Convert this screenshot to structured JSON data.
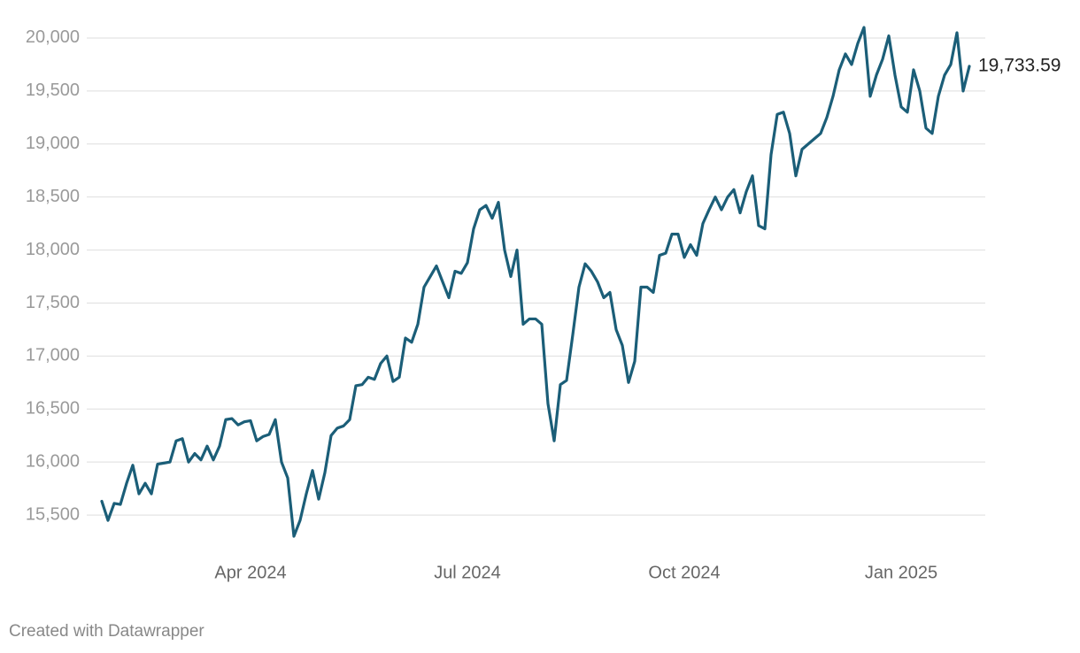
{
  "chart_data": {
    "type": "line",
    "categories": [
      null,
      null,
      null,
      null,
      null,
      null,
      null,
      null,
      null,
      null,
      null,
      null,
      null,
      null,
      null,
      null,
      null,
      null,
      null,
      null,
      null,
      null,
      null,
      null,
      "Apr 2024",
      null,
      null,
      null,
      null,
      null,
      null,
      null,
      null,
      null,
      null,
      null,
      null,
      null,
      null,
      null,
      null,
      null,
      null,
      null,
      null,
      null,
      null,
      null,
      null,
      null,
      null,
      null,
      null,
      null,
      null,
      null,
      null,
      null,
      null,
      "Jul 2024",
      null,
      null,
      null,
      null,
      null,
      null,
      null,
      null,
      null,
      null,
      null,
      null,
      null,
      null,
      null,
      null,
      null,
      null,
      null,
      null,
      null,
      null,
      null,
      null,
      null,
      null,
      null,
      null,
      null,
      null,
      null,
      null,
      null,
      null,
      "Oct 2024",
      null,
      null,
      null,
      null,
      null,
      null,
      null,
      null,
      null,
      null,
      null,
      null,
      null,
      null,
      null,
      null,
      null,
      null,
      null,
      null,
      null,
      null,
      null,
      null,
      null,
      null,
      null,
      null,
      null,
      null,
      null,
      null,
      null,
      null,
      "Jan 2025",
      null,
      null,
      null,
      null,
      null,
      null,
      null,
      null,
      null,
      null,
      null
    ],
    "values": [
      15630,
      15450,
      15610,
      15600,
      15800,
      15970,
      15700,
      15800,
      15700,
      15980,
      15990,
      16000,
      16200,
      16220,
      16000,
      16080,
      16020,
      16150,
      16020,
      16150,
      16400,
      16410,
      16350,
      16380,
      16390,
      16200,
      16240,
      16260,
      16400,
      16000,
      15850,
      15300,
      15450,
      15700,
      15920,
      15650,
      15900,
      16250,
      16320,
      16340,
      16400,
      16720,
      16730,
      16800,
      16780,
      16930,
      17000,
      16760,
      16800,
      17170,
      17130,
      17300,
      17650,
      17750,
      17850,
      17700,
      17550,
      17800,
      17780,
      17880,
      18200,
      18380,
      18420,
      18300,
      18450,
      18000,
      17750,
      18000,
      17300,
      17350,
      17350,
      17300,
      16550,
      16200,
      16730,
      16770,
      17200,
      17650,
      17870,
      17800,
      17700,
      17550,
      17600,
      17250,
      17100,
      16750,
      16950,
      17650,
      17650,
      17600,
      17950,
      17970,
      18150,
      18150,
      17930,
      18050,
      17950,
      18250,
      18380,
      18500,
      18380,
      18500,
      18570,
      18350,
      18550,
      18700,
      18230,
      18200,
      18900,
      19280,
      19300,
      19100,
      18700,
      18950,
      19000,
      19050,
      19100,
      19250,
      19450,
      19700,
      19850,
      19750,
      19950,
      20100,
      19450,
      19650,
      19800,
      20020,
      19650,
      19350,
      19300,
      19700,
      19500,
      19150,
      19100,
      19450,
      19650,
      19750,
      20050,
      19500,
      19733.59
    ],
    "value_labels": [
      null,
      null,
      null,
      null,
      null,
      null,
      null,
      null,
      null,
      null,
      null,
      null,
      null,
      null,
      null,
      null,
      null,
      null,
      null,
      null,
      null,
      null,
      null,
      null,
      null,
      null,
      null,
      null,
      null,
      null,
      null,
      null,
      null,
      null,
      null,
      null,
      null,
      null,
      null,
      null,
      null,
      null,
      null,
      null,
      null,
      null,
      null,
      null,
      null,
      null,
      null,
      null,
      null,
      null,
      null,
      null,
      null,
      null,
      null,
      null,
      null,
      null,
      null,
      null,
      null,
      null,
      null,
      null,
      null,
      null,
      null,
      null,
      null,
      null,
      null,
      null,
      null,
      null,
      null,
      null,
      null,
      null,
      null,
      null,
      null,
      null,
      null,
      null,
      null,
      null,
      null,
      null,
      null,
      null,
      null,
      null,
      null,
      null,
      null,
      null,
      null,
      null,
      null,
      null,
      null,
      null,
      null,
      null,
      null,
      null,
      null,
      null,
      null,
      null,
      null,
      null,
      null,
      null,
      null,
      null,
      null,
      null,
      null,
      null,
      null,
      null,
      null,
      null,
      null,
      null,
      null,
      null,
      null,
      null,
      null,
      null,
      null,
      null,
      null,
      null,
      "19,733.59"
    ],
    "color": "#1b5e78",
    "ylim": [
      15100,
      20200
    ],
    "yticks": [
      {
        "value": 15500,
        "label": "15,500"
      },
      {
        "value": 16000,
        "label": "16,000"
      },
      {
        "value": 16500,
        "label": "16,500"
      },
      {
        "value": 17000,
        "label": "17,000"
      },
      {
        "value": 17500,
        "label": "17,500"
      },
      {
        "value": 18000,
        "label": "18,000"
      },
      {
        "value": 18500,
        "label": "18,500"
      },
      {
        "value": 19000,
        "label": "19,000"
      },
      {
        "value": 19500,
        "label": "19,500"
      },
      {
        "value": 20000,
        "label": "20,000"
      }
    ],
    "grid": true,
    "credit": "Created with Datawrapper"
  }
}
